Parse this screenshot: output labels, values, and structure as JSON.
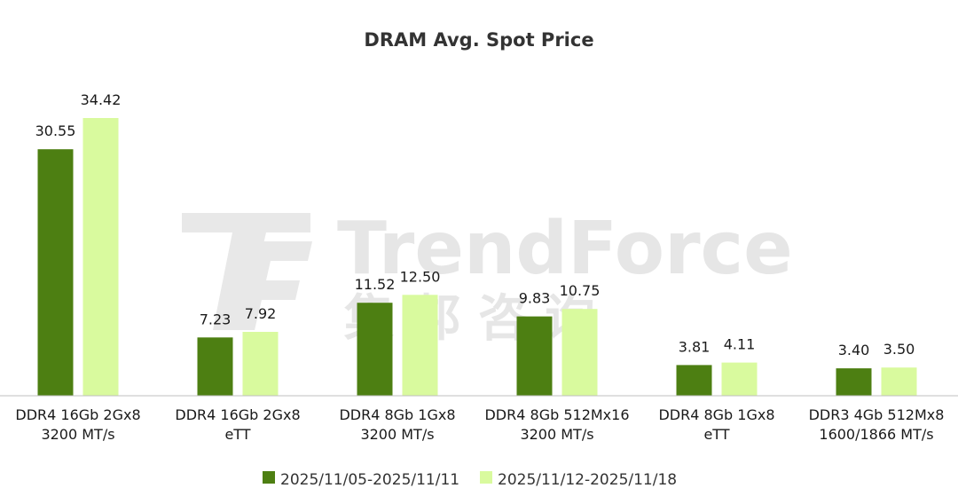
{
  "watermark": {
    "brand": "TrendForce",
    "chinese": "集 邦 咨 询"
  },
  "colors": {
    "series1": "#4d7f12",
    "series2": "#d9fa9e",
    "axis": "#bfbfbf",
    "watermark": "#e6e6e6"
  },
  "chart_data": {
    "type": "bar",
    "title": "DRAM Avg. Spot Price",
    "xlabel": "",
    "ylabel": "",
    "ylim": [
      0,
      35
    ],
    "grid": false,
    "legend_position": "bottom",
    "categories": [
      [
        "DDR4 16Gb 2Gx8",
        "3200 MT/s"
      ],
      [
        "DDR4 16Gb 2Gx8",
        "eTT"
      ],
      [
        "DDR4 8Gb 1Gx8",
        "3200 MT/s"
      ],
      [
        "DDR4 8Gb 512Mx16",
        "3200 MT/s"
      ],
      [
        "DDR4 8Gb 1Gx8",
        "eTT"
      ],
      [
        "DDR3 4Gb 512Mx8",
        "1600/1866 MT/s"
      ]
    ],
    "series": [
      {
        "name": "2025/11/05-2025/11/11",
        "color": "#4d7f12",
        "values": [
          30.55,
          7.23,
          11.52,
          9.83,
          3.81,
          3.4
        ],
        "labels": [
          "30.55",
          "7.23",
          "11.52",
          "9.83",
          "3.81",
          "3.40"
        ]
      },
      {
        "name": "2025/11/12-2025/11/18",
        "color": "#d9fa9e",
        "values": [
          34.42,
          7.92,
          12.5,
          10.75,
          4.11,
          3.5
        ],
        "labels": [
          "34.42",
          "7.92",
          "12.50",
          "10.75",
          "4.11",
          "3.50"
        ]
      }
    ]
  }
}
